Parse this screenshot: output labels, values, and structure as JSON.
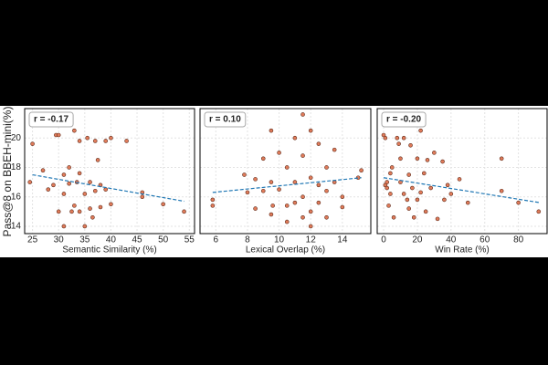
{
  "chart_data": [
    {
      "type": "scatter",
      "xlabel": "Semantic Similarity (%)",
      "ylabel": "Pass@8 on BBEH-mini(%)",
      "annotation": "r = -0.17",
      "x": [
        24.5,
        25,
        27,
        28,
        29,
        29.5,
        30,
        30,
        31,
        31,
        32,
        32,
        33,
        33,
        33.5,
        34,
        34,
        34,
        35,
        35,
        35.5,
        36,
        36,
        36.5,
        37,
        37,
        37.5,
        38,
        38,
        39,
        39,
        40,
        40,
        43,
        46,
        46,
        50,
        54,
        31,
        32.5
      ],
      "values": [
        17,
        19.6,
        17.8,
        16.5,
        16.8,
        20.2,
        20.2,
        15,
        17.5,
        16.2,
        18,
        16.9,
        20.5,
        15.4,
        17,
        19.8,
        17.6,
        15,
        16.2,
        14,
        20,
        17,
        15.2,
        14.6,
        19.8,
        16.4,
        18.5,
        16.8,
        15.3,
        19.8,
        16.5,
        20,
        15.5,
        19.8,
        16.3,
        16,
        15.5,
        15,
        14,
        15
      ],
      "trend": {
        "x": [
          25,
          54
        ],
        "values": [
          17.5,
          15.7
        ]
      },
      "color": "#e07b5a",
      "trend_color": "#1f77b4",
      "xlim": [
        23.5,
        56
      ],
      "xticks": [
        25,
        30,
        35,
        40,
        45,
        50,
        55
      ],
      "ylim": [
        13.5,
        22
      ],
      "yticks": [
        14,
        16,
        18,
        20
      ],
      "grid": true,
      "show_yticklabels": true
    },
    {
      "type": "scatter",
      "xlabel": "Lexical Overlap (%)",
      "annotation": "r = 0.10",
      "x": [
        5.8,
        5.8,
        8,
        8.5,
        8.5,
        9,
        9,
        9.5,
        9.5,
        9.5,
        10,
        10,
        10.5,
        10.5,
        10.5,
        11,
        11,
        11,
        11.5,
        11.5,
        11.5,
        11.5,
        12,
        12,
        12,
        12,
        12.5,
        12.5,
        12.5,
        13,
        13,
        13,
        13.5,
        13.5,
        14,
        14,
        15,
        15.2,
        9.6,
        7.8
      ],
      "values": [
        15.8,
        15.4,
        16.3,
        17.2,
        15.2,
        18.6,
        16.4,
        20.5,
        17,
        14.8,
        19,
        16.5,
        18,
        15.4,
        14.3,
        20,
        17,
        15.6,
        21.6,
        18.8,
        16,
        14.6,
        20.5,
        17.3,
        15,
        14,
        19.6,
        16.8,
        15.6,
        18,
        16.4,
        14.6,
        19.2,
        17,
        16,
        15.3,
        17.3,
        17.8,
        15.4,
        17.5
      ],
      "trend": {
        "x": [
          5.8,
          15.2
        ],
        "values": [
          16.3,
          17.3
        ]
      },
      "color": "#e07b5a",
      "trend_color": "#1f77b4",
      "xlim": [
        5,
        15.8
      ],
      "xticks": [
        6,
        8,
        10,
        12,
        14
      ],
      "ylim": [
        13.5,
        22
      ],
      "yticks": [
        14,
        16,
        18,
        20
      ],
      "grid": true,
      "show_yticklabels": false
    },
    {
      "type": "scatter",
      "xlabel": "Win Rate (%)",
      "annotation": "r = -0.20",
      "x": [
        0,
        1,
        1,
        2,
        2,
        3,
        4,
        4,
        5,
        6,
        8,
        9,
        10,
        10,
        12,
        12,
        14,
        15,
        15,
        16,
        17,
        18,
        19,
        20,
        20,
        22,
        22,
        24,
        25,
        26,
        28,
        30,
        32,
        35,
        36,
        38,
        40,
        45,
        50,
        70,
        70,
        80,
        92
      ],
      "values": [
        20.2,
        20,
        16.8,
        17,
        16.6,
        15.4,
        17.6,
        16.2,
        18,
        14.6,
        20,
        19.6,
        18.6,
        17,
        20,
        16.2,
        15.8,
        17.5,
        15.2,
        19.5,
        16.6,
        14.6,
        21.3,
        18.6,
        15.8,
        20.5,
        16.3,
        17.6,
        15,
        18.5,
        16.6,
        19,
        14.5,
        18.4,
        15.8,
        16.8,
        16.2,
        17.2,
        15.6,
        18.6,
        16.4,
        15.6,
        15
      ],
      "trend": {
        "x": [
          0,
          93
        ],
        "values": [
          17.3,
          15.6
        ]
      },
      "color": "#e07b5a",
      "trend_color": "#1f77b4",
      "xlim": [
        -3.8,
        97
      ],
      "xticks": [
        0,
        20,
        40,
        60,
        80
      ],
      "ylim": [
        13.5,
        22
      ],
      "yticks": [
        14,
        16,
        18,
        20
      ],
      "grid": true,
      "show_yticklabels": false
    }
  ]
}
